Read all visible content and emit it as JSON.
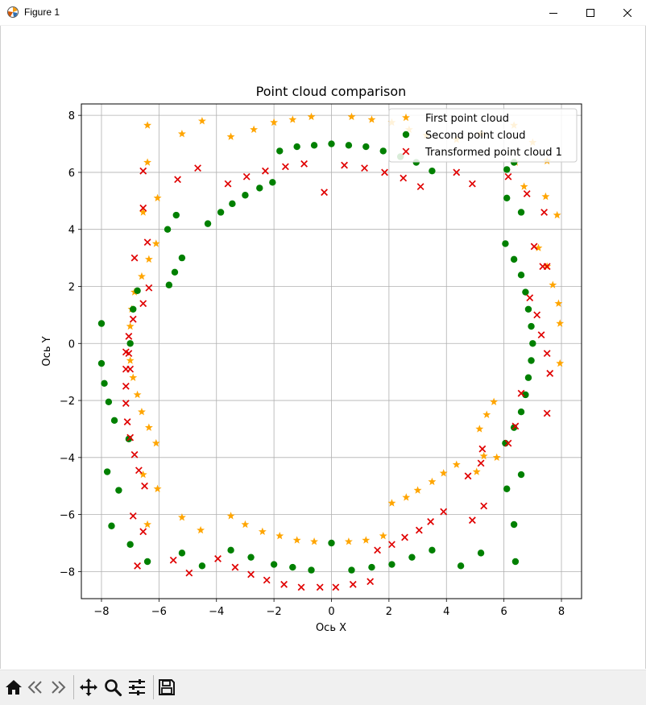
{
  "window": {
    "title": "Figure 1"
  },
  "toolbar": {
    "buttons": [
      {
        "name": "home-icon"
      },
      {
        "name": "back-arrow-icon"
      },
      {
        "name": "forward-arrow-icon"
      },
      {
        "name": "pan-move-icon"
      },
      {
        "name": "zoom-magnifier-icon"
      },
      {
        "name": "configure-subplots-icon"
      },
      {
        "name": "save-disk-icon"
      }
    ]
  },
  "chart_data": {
    "type": "scatter",
    "title": "Point cloud comparison",
    "xlabel": "Ось X",
    "ylabel": "Ось Y",
    "xlim": [
      -8.7,
      8.7
    ],
    "ylim": [
      -8.95,
      8.4
    ],
    "xticks": [
      "−8",
      "−6",
      "−4",
      "−2",
      "0",
      "2",
      "4",
      "6",
      "8"
    ],
    "xtick_values": [
      -8,
      -6,
      -4,
      -2,
      0,
      2,
      4,
      6,
      8
    ],
    "yticks": [
      "−8",
      "−6",
      "−4",
      "−2",
      "0",
      "2",
      "4",
      "6",
      "8"
    ],
    "ytick_values": [
      -8,
      -6,
      -4,
      -2,
      0,
      2,
      4,
      6,
      8
    ],
    "grid": true,
    "legend_position": "top-right",
    "series": [
      {
        "name": "First point cloud",
        "marker": "star",
        "color": "#ffa500",
        "points": [
          [
            -6.4,
            7.65
          ],
          [
            -5.2,
            7.35
          ],
          [
            -4.5,
            7.8
          ],
          [
            -3.5,
            7.25
          ],
          [
            -2.7,
            7.5
          ],
          [
            -2.0,
            7.75
          ],
          [
            -1.35,
            7.85
          ],
          [
            -0.7,
            7.95
          ],
          [
            0.7,
            7.95
          ],
          [
            1.4,
            7.85
          ],
          [
            2.1,
            7.75
          ],
          [
            2.7,
            7.5
          ],
          [
            3.3,
            7.3
          ],
          [
            4.35,
            7.15
          ],
          [
            5.2,
            7.35
          ],
          [
            6.35,
            7.65
          ],
          [
            7.0,
            7.05
          ],
          [
            7.5,
            6.4
          ],
          [
            7.45,
            5.15
          ],
          [
            7.85,
            4.5
          ],
          [
            6.4,
            6.35
          ],
          [
            6.7,
            5.5
          ],
          [
            7.2,
            3.35
          ],
          [
            7.5,
            2.7
          ],
          [
            7.7,
            2.05
          ],
          [
            7.9,
            1.4
          ],
          [
            7.95,
            0.7
          ],
          [
            7.95,
            -0.7
          ],
          [
            -6.4,
            6.35
          ],
          [
            -6.05,
            5.1
          ],
          [
            -6.55,
            4.6
          ],
          [
            -6.1,
            3.5
          ],
          [
            -6.35,
            2.95
          ],
          [
            -6.6,
            2.35
          ],
          [
            -6.85,
            1.8
          ],
          [
            -6.95,
            1.2
          ],
          [
            -7.0,
            0.6
          ],
          [
            -7.0,
            -0.6
          ],
          [
            -6.9,
            -1.2
          ],
          [
            -6.75,
            -1.8
          ],
          [
            -6.6,
            -2.4
          ],
          [
            -6.35,
            -2.95
          ],
          [
            -6.1,
            -3.5
          ],
          [
            -6.55,
            -4.6
          ],
          [
            -6.05,
            -5.1
          ],
          [
            -6.4,
            -6.35
          ],
          [
            -5.2,
            -6.1
          ],
          [
            -4.55,
            -6.55
          ],
          [
            -3.5,
            -6.05
          ],
          [
            -3.0,
            -6.35
          ],
          [
            -2.4,
            -6.6
          ],
          [
            -1.8,
            -6.75
          ],
          [
            -1.2,
            -6.9
          ],
          [
            -0.6,
            -6.95
          ],
          [
            0.6,
            -6.95
          ],
          [
            1.2,
            -6.9
          ],
          [
            1.8,
            -6.75
          ],
          [
            2.1,
            -5.6
          ],
          [
            2.6,
            -5.4
          ],
          [
            3.0,
            -5.15
          ],
          [
            3.5,
            -4.85
          ],
          [
            3.9,
            -4.55
          ],
          [
            4.35,
            -4.25
          ],
          [
            5.05,
            -4.5
          ],
          [
            5.3,
            -3.95
          ],
          [
            5.75,
            -4.0
          ],
          [
            5.15,
            -3.0
          ],
          [
            5.4,
            -2.5
          ],
          [
            5.65,
            -2.05
          ]
        ]
      },
      {
        "name": "Second point cloud",
        "marker": "circle",
        "color": "#008000",
        "points": [
          [
            -1.8,
            6.75
          ],
          [
            -1.2,
            6.9
          ],
          [
            -0.6,
            6.95
          ],
          [
            0.0,
            7.0
          ],
          [
            0.6,
            6.95
          ],
          [
            1.2,
            6.9
          ],
          [
            1.8,
            6.75
          ],
          [
            2.4,
            6.55
          ],
          [
            2.95,
            6.35
          ],
          [
            3.5,
            6.05
          ],
          [
            6.1,
            6.1
          ],
          [
            6.35,
            6.35
          ],
          [
            -2.05,
            5.65
          ],
          [
            -2.5,
            5.45
          ],
          [
            -3.0,
            5.2
          ],
          [
            -3.45,
            4.9
          ],
          [
            -3.85,
            4.6
          ],
          [
            -4.3,
            4.2
          ],
          [
            -5.4,
            4.5
          ],
          [
            -5.7,
            4.0
          ],
          [
            -5.2,
            3.0
          ],
          [
            -5.45,
            2.5
          ],
          [
            -5.65,
            2.05
          ],
          [
            -6.75,
            1.85
          ],
          [
            -6.9,
            1.2
          ],
          [
            -7.0,
            0.0
          ],
          [
            -8.0,
            0.7
          ],
          [
            -8.0,
            -0.7
          ],
          [
            -7.9,
            -1.4
          ],
          [
            -7.75,
            -2.05
          ],
          [
            -7.55,
            -2.7
          ],
          [
            -7.05,
            -3.35
          ],
          [
            -7.8,
            -4.5
          ],
          [
            -7.4,
            -5.15
          ],
          [
            -7.65,
            -6.4
          ],
          [
            -7.0,
            -7.05
          ],
          [
            -6.4,
            -7.65
          ],
          [
            -5.2,
            -7.35
          ],
          [
            -4.5,
            -7.8
          ],
          [
            -3.5,
            -7.25
          ],
          [
            -2.8,
            -7.5
          ],
          [
            -2.0,
            -7.75
          ],
          [
            -1.35,
            -7.85
          ],
          [
            -0.7,
            -7.95
          ],
          [
            0.0,
            -7.0
          ],
          [
            0.7,
            -7.95
          ],
          [
            1.4,
            -7.85
          ],
          [
            2.1,
            -7.75
          ],
          [
            2.8,
            -7.5
          ],
          [
            3.5,
            -7.25
          ],
          [
            4.5,
            -7.8
          ],
          [
            5.2,
            -7.35
          ],
          [
            6.4,
            -7.65
          ],
          [
            6.35,
            -6.35
          ],
          [
            6.6,
            -4.6
          ],
          [
            6.1,
            -5.1
          ],
          [
            6.05,
            -3.5
          ],
          [
            6.35,
            -2.95
          ],
          [
            6.6,
            -2.4
          ],
          [
            6.75,
            -1.8
          ],
          [
            6.85,
            -1.2
          ],
          [
            6.95,
            -0.6
          ],
          [
            7.0,
            0.0
          ],
          [
            6.95,
            0.6
          ],
          [
            6.85,
            1.2
          ],
          [
            6.75,
            1.8
          ],
          [
            6.6,
            2.4
          ],
          [
            6.35,
            2.95
          ],
          [
            6.05,
            3.5
          ],
          [
            6.6,
            4.6
          ],
          [
            6.1,
            5.1
          ]
        ]
      },
      {
        "name": "Transformed point cloud 1",
        "marker": "x",
        "color": "#e00000",
        "points": [
          [
            -6.55,
            6.05
          ],
          [
            -5.35,
            5.75
          ],
          [
            -4.65,
            6.15
          ],
          [
            -3.6,
            5.6
          ],
          [
            -2.95,
            5.85
          ],
          [
            -2.3,
            6.05
          ],
          [
            -1.6,
            6.2
          ],
          [
            -0.95,
            6.3
          ],
          [
            -0.25,
            5.3
          ],
          [
            0.45,
            6.25
          ],
          [
            1.15,
            6.15
          ],
          [
            1.85,
            6.0
          ],
          [
            2.5,
            5.8
          ],
          [
            3.1,
            5.5
          ],
          [
            4.35,
            6.0
          ],
          [
            4.9,
            5.6
          ],
          [
            6.15,
            5.85
          ],
          [
            6.8,
            5.25
          ],
          [
            7.4,
            4.6
          ],
          [
            -6.55,
            4.75
          ],
          [
            -6.4,
            3.55
          ],
          [
            -6.35,
            1.95
          ],
          [
            -6.85,
            3.0
          ],
          [
            -6.55,
            1.4
          ],
          [
            -6.9,
            0.85
          ],
          [
            -7.05,
            0.25
          ],
          [
            -7.05,
            -0.35
          ],
          [
            -7.0,
            -0.9
          ],
          [
            -7.15,
            -0.3
          ],
          [
            -7.15,
            -0.9
          ],
          [
            -7.15,
            -1.5
          ],
          [
            -7.15,
            -2.1
          ],
          [
            -7.1,
            -2.75
          ],
          [
            -7.0,
            -3.3
          ],
          [
            -6.85,
            -3.9
          ],
          [
            -6.7,
            -4.45
          ],
          [
            -6.5,
            -5.0
          ],
          [
            -6.55,
            -6.6
          ],
          [
            -6.9,
            -6.05
          ],
          [
            -6.75,
            -7.8
          ],
          [
            -5.5,
            -7.6
          ],
          [
            -4.95,
            -8.05
          ],
          [
            -3.95,
            -7.55
          ],
          [
            -3.35,
            -7.85
          ],
          [
            -2.8,
            -8.1
          ],
          [
            -2.25,
            -8.3
          ],
          [
            -1.65,
            -8.45
          ],
          [
            -1.05,
            -8.55
          ],
          [
            -0.4,
            -8.55
          ],
          [
            0.15,
            -8.55
          ],
          [
            0.75,
            -8.45
          ],
          [
            1.35,
            -8.35
          ],
          [
            1.6,
            -7.25
          ],
          [
            2.1,
            -7.05
          ],
          [
            2.55,
            -6.8
          ],
          [
            3.05,
            -6.55
          ],
          [
            3.45,
            -6.25
          ],
          [
            3.9,
            -5.9
          ],
          [
            4.75,
            -4.65
          ],
          [
            5.2,
            -4.2
          ],
          [
            5.25,
            -3.7
          ],
          [
            5.3,
            -5.7
          ],
          [
            4.9,
            -6.2
          ],
          [
            6.15,
            -3.5
          ],
          [
            6.4,
            -2.9
          ],
          [
            6.6,
            -1.75
          ],
          [
            7.5,
            -2.45
          ],
          [
            7.6,
            -1.05
          ],
          [
            7.5,
            -0.35
          ],
          [
            7.3,
            0.3
          ],
          [
            7.15,
            1.0
          ],
          [
            6.9,
            1.6
          ],
          [
            7.05,
            3.4
          ],
          [
            7.5,
            2.7
          ],
          [
            7.35,
            2.7
          ]
        ]
      }
    ]
  }
}
